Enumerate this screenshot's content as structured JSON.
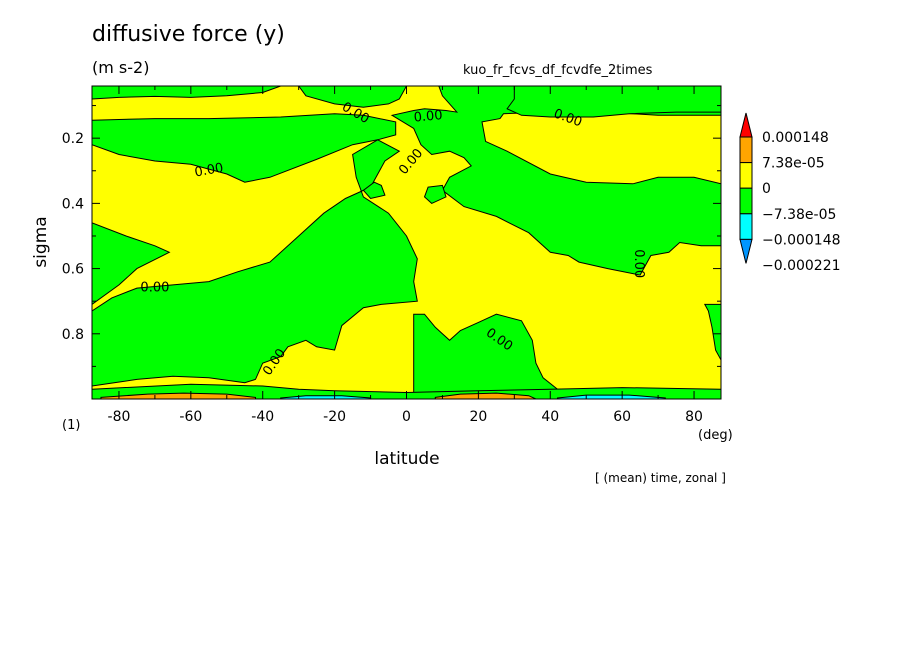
{
  "title": "diffusive force (y)",
  "units": "(m s-2)",
  "run_id": "kuo_fr_fcvs_df_fcvdfe_2times",
  "footnote": "[ (mean) time, zonal ]",
  "colors": {
    "red": "#ff0000",
    "orange": "#ffa500",
    "yellow": "#ffff00",
    "green": "#00ff00",
    "cyan": "#00ffff",
    "blue": "#0096ff",
    "contour": "#000000"
  },
  "chart_data": {
    "type": "heatmap",
    "subtype": "filled contour",
    "xlabel": "latitude",
    "xunit": "(deg)",
    "ylabel": "sigma",
    "yunit": "(1)",
    "xlim": [
      -87.5,
      87.5
    ],
    "ylim": [
      1.0,
      0.04
    ],
    "y_inverted": true,
    "xticks": [
      "-80",
      "-60",
      "-40",
      "-20",
      "0",
      "20",
      "40",
      "60",
      "80"
    ],
    "yticks": [
      "0.2",
      "0.4",
      "0.6",
      "0.8"
    ],
    "contour_label": "0.00",
    "colorbar": {
      "levels": [
        "0.000148",
        "7.38e-05",
        "0",
        "−7.38e-05",
        "−0.000148",
        "−0.000221"
      ],
      "colors_top_to_bottom": [
        "red",
        "orange",
        "yellow",
        "green",
        "cyan",
        "blue"
      ]
    },
    "regions": [
      {
        "sign": "negative",
        "fill": "green",
        "pts": [
          [
            -87.5,
            0.04
          ],
          [
            -87.5,
            0.08
          ],
          [
            -80,
            0.075
          ],
          [
            -70,
            0.072
          ],
          [
            -60,
            0.075
          ],
          [
            -50,
            0.07
          ],
          [
            -40,
            0.06
          ],
          [
            -35,
            0.04
          ]
        ]
      },
      {
        "sign": "negative",
        "fill": "green",
        "pts": [
          [
            -87.5,
            0.22
          ],
          [
            -80,
            0.25
          ],
          [
            -70,
            0.27
          ],
          [
            -60,
            0.28
          ],
          [
            -50,
            0.31
          ],
          [
            -45,
            0.335
          ],
          [
            -38,
            0.32
          ],
          [
            -25,
            0.265
          ],
          [
            -15,
            0.22
          ],
          [
            -8,
            0.205
          ],
          [
            -3,
            0.19
          ],
          [
            -3,
            0.15
          ],
          [
            -12,
            0.13
          ],
          [
            -20,
            0.125
          ],
          [
            -35,
            0.135
          ],
          [
            -55,
            0.14
          ],
          [
            -70,
            0.14
          ],
          [
            -87.5,
            0.145
          ]
        ]
      },
      {
        "sign": "negative",
        "fill": "green",
        "pts": [
          [
            -30,
            0.04
          ],
          [
            -28,
            0.07
          ],
          [
            -20,
            0.095
          ],
          [
            -12,
            0.105
          ],
          [
            -5,
            0.095
          ],
          [
            -2,
            0.08
          ],
          [
            0,
            0.04
          ]
        ]
      },
      {
        "sign": "negative",
        "fill": "green",
        "pts": [
          [
            9,
            0.04
          ],
          [
            10,
            0.07
          ],
          [
            14,
            0.12
          ],
          [
            11,
            0.115
          ],
          [
            5,
            0.11
          ],
          [
            2,
            0.115
          ],
          [
            -4,
            0.13
          ],
          [
            2,
            0.17
          ],
          [
            4,
            0.22
          ],
          [
            7,
            0.25
          ],
          [
            12,
            0.24
          ],
          [
            16,
            0.26
          ],
          [
            18,
            0.285
          ],
          [
            12,
            0.32
          ],
          [
            10,
            0.36
          ],
          [
            16,
            0.41
          ],
          [
            25,
            0.44
          ],
          [
            34,
            0.49
          ],
          [
            40,
            0.55
          ],
          [
            45,
            0.56
          ],
          [
            48,
            0.58
          ],
          [
            56,
            0.6
          ],
          [
            65,
            0.62
          ],
          [
            68,
            0.56
          ],
          [
            73,
            0.55
          ],
          [
            76,
            0.52
          ],
          [
            82,
            0.53
          ],
          [
            87.5,
            0.53
          ],
          [
            87.5,
            0.34
          ],
          [
            80,
            0.32
          ],
          [
            70,
            0.32
          ],
          [
            63,
            0.34
          ],
          [
            50,
            0.335
          ],
          [
            40,
            0.31
          ],
          [
            28,
            0.24
          ],
          [
            22,
            0.21
          ],
          [
            21,
            0.15
          ],
          [
            26,
            0.14
          ],
          [
            27,
            0.125
          ],
          [
            40,
            0.12
          ],
          [
            55,
            0.12
          ],
          [
            70,
            0.13
          ],
          [
            87.5,
            0.13
          ],
          [
            87.5,
            0.04
          ]
        ]
      },
      {
        "sign": "negative",
        "fill": "green",
        "pts": [
          [
            30,
            0.04
          ],
          [
            30,
            0.08
          ],
          [
            28,
            0.11
          ],
          [
            32,
            0.13
          ],
          [
            40,
            0.135
          ],
          [
            52,
            0.135
          ],
          [
            62,
            0.125
          ],
          [
            75,
            0.12
          ],
          [
            87.5,
            0.12
          ],
          [
            87.5,
            0.04
          ]
        ]
      },
      {
        "sign": "negative",
        "fill": "green",
        "pts": [
          [
            -87.5,
            0.73
          ],
          [
            -82,
            0.69
          ],
          [
            -75,
            0.66
          ],
          [
            -65,
            0.65
          ],
          [
            -55,
            0.64
          ],
          [
            -47,
            0.61
          ],
          [
            -38,
            0.58
          ],
          [
            -30,
            0.5
          ],
          [
            -23,
            0.43
          ],
          [
            -17,
            0.385
          ],
          [
            -10,
            0.35
          ],
          [
            -6,
            0.27
          ],
          [
            -2,
            0.24
          ],
          [
            -8,
            0.205
          ],
          [
            -15,
            0.25
          ],
          [
            -14,
            0.32
          ],
          [
            -12,
            0.38
          ],
          [
            -5,
            0.43
          ],
          [
            0,
            0.5
          ],
          [
            3,
            0.57
          ],
          [
            2,
            0.64
          ],
          [
            3,
            0.7
          ],
          [
            -7,
            0.71
          ],
          [
            -12,
            0.72
          ],
          [
            -18,
            0.775
          ],
          [
            -20,
            0.85
          ],
          [
            -25,
            0.84
          ],
          [
            -28,
            0.82
          ],
          [
            -33,
            0.84
          ],
          [
            -35,
            0.87
          ],
          [
            -40,
            0.89
          ],
          [
            -42,
            0.94
          ],
          [
            -45,
            0.95
          ],
          [
            -55,
            0.935
          ],
          [
            -65,
            0.93
          ],
          [
            -75,
            0.94
          ],
          [
            -87.5,
            0.96
          ]
        ]
      },
      {
        "sign": "negative",
        "fill": "green",
        "pts": [
          [
            -87.5,
            0.46
          ],
          [
            -78,
            0.5
          ],
          [
            -70,
            0.53
          ],
          [
            -66,
            0.55
          ],
          [
            -75,
            0.6
          ],
          [
            -80,
            0.65
          ],
          [
            -87.5,
            0.71
          ]
        ]
      },
      {
        "sign": "negative",
        "fill": "green",
        "pts": [
          [
            2,
            0.74
          ],
          [
            2,
            1.0
          ],
          [
            45,
            1.0
          ],
          [
            42,
            0.97
          ],
          [
            38,
            0.935
          ],
          [
            36,
            0.89
          ],
          [
            35,
            0.82
          ],
          [
            32,
            0.76
          ],
          [
            25,
            0.74
          ],
          [
            20,
            0.765
          ],
          [
            15,
            0.79
          ],
          [
            12,
            0.82
          ],
          [
            10,
            0.8
          ],
          [
            8,
            0.78
          ],
          [
            5,
            0.74
          ]
        ]
      },
      {
        "sign": "negative",
        "fill": "green",
        "pts": [
          [
            83,
            0.71
          ],
          [
            84,
            0.73
          ],
          [
            85,
            0.78
          ],
          [
            86,
            0.85
          ],
          [
            87.5,
            0.88
          ],
          [
            87.5,
            0.71
          ]
        ]
      },
      {
        "sign": "negative",
        "fill": "green",
        "pts": [
          [
            -9,
            0.335
          ],
          [
            -7,
            0.345
          ],
          [
            -6,
            0.375
          ],
          [
            -10,
            0.385
          ],
          [
            -12,
            0.36
          ]
        ]
      },
      {
        "sign": "negative",
        "fill": "green",
        "pts": [
          [
            6,
            0.35
          ],
          [
            10,
            0.345
          ],
          [
            11,
            0.38
          ],
          [
            7,
            0.4
          ],
          [
            5,
            0.38
          ]
        ]
      },
      {
        "sign": "negative",
        "fill": "green",
        "pts": [
          [
            -87.5,
            0.97
          ],
          [
            -60,
            0.955
          ],
          [
            -40,
            0.96
          ],
          [
            -30,
            0.97
          ],
          [
            -20,
            0.975
          ],
          [
            0,
            0.98
          ],
          [
            20,
            0.975
          ],
          [
            40,
            0.97
          ],
          [
            60,
            0.965
          ],
          [
            87.5,
            0.97
          ],
          [
            87.5,
            1.0
          ],
          [
            -87.5,
            1.0
          ]
        ]
      },
      {
        "sign": "positive",
        "fill": "orange",
        "pts": [
          [
            -85,
            0.995
          ],
          [
            -72,
            0.985
          ],
          [
            -62,
            0.982
          ],
          [
            -50,
            0.985
          ],
          [
            -42,
            0.995
          ],
          [
            -42,
            1.0
          ],
          [
            -85,
            1.0
          ]
        ]
      },
      {
        "sign": "positive",
        "fill": "orange",
        "pts": [
          [
            8,
            0.995
          ],
          [
            15,
            0.985
          ],
          [
            25,
            0.982
          ],
          [
            34,
            0.99
          ],
          [
            36,
            1.0
          ],
          [
            8,
            1.0
          ]
        ]
      },
      {
        "sign": "negative",
        "fill": "cyan",
        "pts": [
          [
            -35,
            0.997
          ],
          [
            -28,
            0.99
          ],
          [
            -18,
            0.99
          ],
          [
            -10,
            0.997
          ],
          [
            -10,
            1.0
          ],
          [
            -35,
            1.0
          ]
        ]
      },
      {
        "sign": "negative",
        "fill": "cyan",
        "pts": [
          [
            42,
            0.997
          ],
          [
            50,
            0.988
          ],
          [
            62,
            0.988
          ],
          [
            72,
            0.997
          ],
          [
            72,
            1.0
          ],
          [
            42,
            1.0
          ]
        ]
      }
    ],
    "contour_labels": [
      {
        "x": -14,
        "y": 0.12,
        "angle": 30
      },
      {
        "x": 6,
        "y": 0.13,
        "angle": -5
      },
      {
        "x": 45,
        "y": 0.135,
        "angle": 20
      },
      {
        "x": -55,
        "y": 0.295,
        "angle": -10
      },
      {
        "x": 1,
        "y": 0.27,
        "angle": -50
      },
      {
        "x": 65,
        "y": 0.585,
        "angle": 90
      },
      {
        "x": -70,
        "y": 0.655,
        "angle": 0
      },
      {
        "x": 26,
        "y": 0.815,
        "angle": 35
      },
      {
        "x": -37,
        "y": 0.885,
        "angle": -55
      }
    ]
  }
}
